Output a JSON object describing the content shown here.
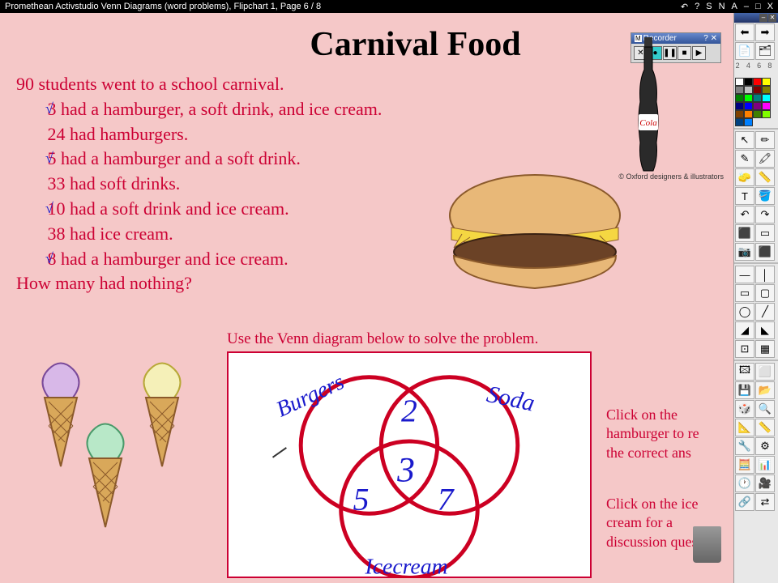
{
  "titlebar": {
    "left": "Promethean Activstudio   Venn Diagrams (word problems),  Flipchart 1,  Page 6 / 8",
    "icons": [
      "↶",
      "?",
      "S",
      "N",
      "A",
      "–",
      "□",
      "X"
    ]
  },
  "page_title": "Carnival Food",
  "problem": {
    "l0": "90 students went to a school carnival.",
    "l1": "       3 had a hamburger, a soft drink, and ice cream.",
    "l2": "       24 had hamburgers.",
    "l3": "       5 had a hamburger and a soft drink.",
    "l4": "       33 had soft drinks.",
    "l5": "       10 had a soft drink and ice cream.",
    "l6": "       38 had ice cream.",
    "l7": "       8 had a hamburger and ice cream.",
    "l8": "How many had nothing?",
    "check": "√"
  },
  "instruction": "Use the Venn diagram below to solve the problem.",
  "venn": {
    "label_a": "Burgers",
    "label_b": "Soda",
    "label_c": "Icecream",
    "ab": "2",
    "abc": "3",
    "ac": "5",
    "bc": "7",
    "circle_color": "#cc0022",
    "ink_color": "#1a1acc"
  },
  "hint1": "Click on the\nhamburger to re\nthe correct ans",
  "hint2": "Click on the ice\ncream for a\ndiscussion ques",
  "cola_label": "Cola",
  "credit": "© Oxford designers & illustrators",
  "recorder": {
    "title": "Recorder",
    "help": "?",
    "close": "✕"
  },
  "swatches": [
    "#ffffff",
    "#000000",
    "#ff0000",
    "#ffff00",
    "#808080",
    "#c0c0c0",
    "#800000",
    "#808000",
    "#008000",
    "#00ff00",
    "#008080",
    "#00ffff",
    "#000080",
    "#0000ff",
    "#800080",
    "#ff00ff",
    "#804000",
    "#ff8000",
    "#408000",
    "#80ff00",
    "#004080",
    "#0080ff"
  ],
  "nums": [
    "2",
    "4",
    "6",
    "8"
  ],
  "tools_top": [
    "⬅",
    "➡",
    "📄",
    "🗂"
  ],
  "tools_a": [
    "↖",
    "✏",
    "✎",
    "🖍",
    "🧽",
    "📏",
    "T",
    "🪣",
    "↶",
    "↷",
    "⬛",
    "▭",
    "📷",
    "⬛"
  ],
  "tools_b": [
    "—",
    "│",
    "▭",
    "▢",
    "◯",
    "╱",
    "◢",
    "◣",
    "⊡",
    "▦"
  ],
  "tools_c": [
    "🖾",
    "⬜",
    "💾",
    "📂",
    "🎲",
    "🔍",
    "📐",
    "📏",
    "🔧",
    "⚙",
    "🧮",
    "📊",
    "🕐",
    "🎥",
    "🔗",
    "⇄"
  ]
}
